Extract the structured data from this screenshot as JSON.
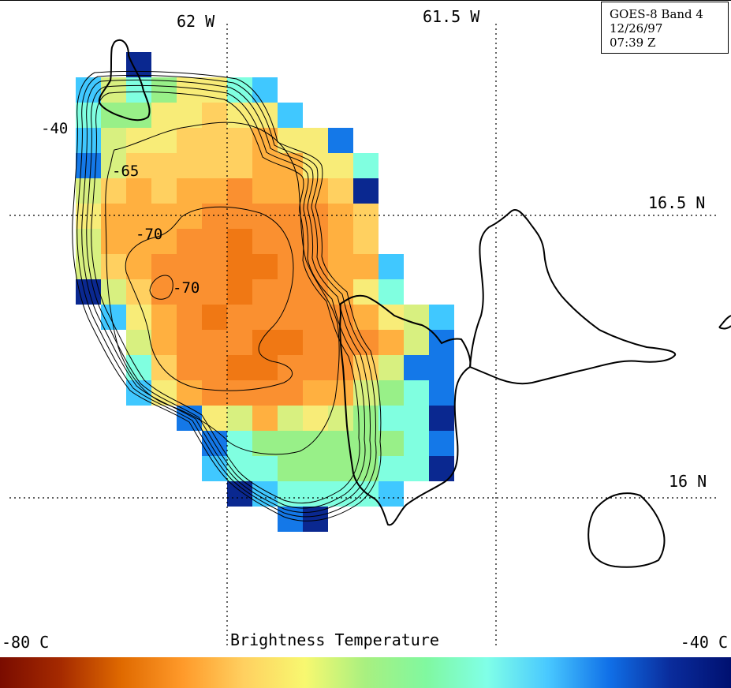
{
  "info_box": {
    "satellite": "GOES-8 Band 4",
    "date": "12/26/97",
    "time": "07:39 Z"
  },
  "grid_labels": {
    "lon_62w": "62 W",
    "lon_61_5w": "61.5 W",
    "lat_16_5n": "16.5 N",
    "lat_16n": "16 N"
  },
  "contour_labels": [
    "-40",
    "-65",
    "-70",
    "-70"
  ],
  "color_scale": {
    "min_label": "-80 C",
    "max_label": "-40 C",
    "title": "Brightness Temperature",
    "stops": [
      "#7a0c00",
      "#a52a00",
      "#e06a00",
      "#ff9a2a",
      "#ffd060",
      "#f8f870",
      "#a8f080",
      "#80f8a0",
      "#80ffe8",
      "#48c8ff",
      "#1070e8",
      "#0a2c9c",
      "#001070"
    ]
  },
  "pixel_grid_colors": {
    "orange_dark": "#f07814",
    "orange": "#fa9030",
    "orange_light": "#ffb040",
    "yellow_orange": "#ffd060",
    "yellow": "#f8ec78",
    "yellow_green": "#d8f080",
    "green": "#98f088",
    "cyan": "#80ffe0",
    "light_blue": "#40c8ff",
    "blue": "#1478e8",
    "navy": "#0a2890"
  }
}
